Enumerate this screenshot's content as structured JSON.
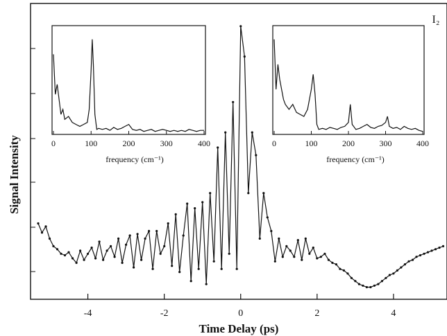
{
  "chart_data": [
    {
      "type": "line",
      "title": "",
      "annotation": "I₂",
      "xlabel": "Time Delay (ps)",
      "ylabel": "Signal Intensity",
      "xlim": [
        -5.5,
        5.4
      ],
      "xticks": [
        -4,
        -2,
        0,
        2,
        4
      ],
      "xtick_labels": [
        "-4",
        "-2",
        "0",
        "2",
        "4"
      ],
      "y_tick_labels_shown": false,
      "grid": false,
      "series": [
        {
          "x": [
            -5.3,
            -5.2,
            -5.1,
            -5.0,
            -4.9,
            -4.8,
            -4.7,
            -4.6,
            -4.5,
            -4.4,
            -4.3,
            -4.2,
            -4.1,
            -4.0,
            -3.9,
            -3.8,
            -3.7,
            -3.6,
            -3.5,
            -3.4,
            -3.3,
            -3.2,
            -3.1,
            -3.0,
            -2.9,
            -2.8,
            -2.7,
            -2.6,
            -2.5,
            -2.4,
            -2.3,
            -2.2,
            -2.1,
            -2.0,
            -1.9,
            -1.8,
            -1.7,
            -1.6,
            -1.5,
            -1.4,
            -1.3,
            -1.2,
            -1.1,
            -1.0,
            -0.9,
            -0.8,
            -0.7,
            -0.6,
            -0.5,
            -0.4,
            -0.3,
            -0.2,
            -0.1,
            0.0,
            0.1,
            0.2,
            0.3,
            0.4,
            0.5,
            0.6,
            0.7,
            0.8,
            0.9,
            1.0,
            1.1,
            1.2,
            1.3,
            1.4,
            1.5,
            1.6,
            1.7,
            1.8,
            1.9,
            2.0,
            2.1,
            2.2,
            2.3,
            2.4,
            2.5,
            2.6,
            2.7,
            2.8,
            2.9,
            3.0,
            3.1,
            3.2,
            3.3,
            3.4,
            3.5,
            3.6,
            3.7,
            3.8,
            3.9,
            4.0,
            4.1,
            4.2,
            4.3,
            4.4,
            4.5,
            4.6,
            4.7,
            4.8,
            4.9,
            5.0,
            5.1,
            5.2,
            5.3
          ],
          "y": [
            0.6,
            0.54,
            0.58,
            0.5,
            0.45,
            0.43,
            0.4,
            0.39,
            0.41,
            0.37,
            0.34,
            0.42,
            0.36,
            0.4,
            0.44,
            0.37,
            0.48,
            0.36,
            0.42,
            0.45,
            0.38,
            0.5,
            0.34,
            0.46,
            0.52,
            0.31,
            0.53,
            0.36,
            0.5,
            0.55,
            0.3,
            0.55,
            0.4,
            0.45,
            0.6,
            0.32,
            0.66,
            0.28,
            0.52,
            0.73,
            0.22,
            0.7,
            0.3,
            0.74,
            0.2,
            0.8,
            0.35,
            1.1,
            0.3,
            1.2,
            0.4,
            1.4,
            0.3,
            1.9,
            1.7,
            0.8,
            1.2,
            1.05,
            0.5,
            0.8,
            0.64,
            0.55,
            0.35,
            0.5,
            0.38,
            0.45,
            0.42,
            0.38,
            0.49,
            0.36,
            0.5,
            0.4,
            0.44,
            0.37,
            0.38,
            0.4,
            0.36,
            0.34,
            0.33,
            0.3,
            0.29,
            0.27,
            0.24,
            0.22,
            0.2,
            0.19,
            0.18,
            0.18,
            0.19,
            0.2,
            0.22,
            0.24,
            0.26,
            0.27,
            0.29,
            0.31,
            0.33,
            0.35,
            0.36,
            0.38,
            0.39,
            0.4,
            0.41,
            0.42,
            0.43,
            0.44,
            0.45
          ]
        }
      ]
    },
    {
      "type": "line",
      "title": "",
      "xlabel": "frequency (cm⁻¹)",
      "ylabel": "",
      "xlim": [
        0,
        400
      ],
      "xticks": [
        0,
        100,
        200,
        300,
        400
      ],
      "xtick_labels": [
        "0",
        "100",
        "200",
        "300",
        "400"
      ],
      "series": [
        {
          "x": [
            0,
            5,
            10,
            15,
            20,
            25,
            30,
            40,
            50,
            60,
            70,
            80,
            90,
            95,
            100,
            103,
            106,
            110,
            115,
            120,
            130,
            140,
            150,
            160,
            170,
            180,
            190,
            200,
            210,
            220,
            230,
            240,
            250,
            260,
            270,
            280,
            290,
            300,
            310,
            320,
            330,
            340,
            350,
            360,
            370,
            380,
            390,
            400
          ],
          "y": [
            0.8,
            0.4,
            0.5,
            0.35,
            0.2,
            0.25,
            0.15,
            0.18,
            0.12,
            0.1,
            0.08,
            0.1,
            0.12,
            0.25,
            0.65,
            0.95,
            0.7,
            0.2,
            0.05,
            0.06,
            0.05,
            0.06,
            0.04,
            0.07,
            0.05,
            0.06,
            0.08,
            0.1,
            0.05,
            0.04,
            0.05,
            0.03,
            0.04,
            0.05,
            0.03,
            0.04,
            0.05,
            0.04,
            0.03,
            0.04,
            0.03,
            0.04,
            0.03,
            0.05,
            0.04,
            0.03,
            0.04,
            0.04
          ]
        }
      ]
    },
    {
      "type": "line",
      "title": "",
      "xlabel": "frequency (cm⁻¹)",
      "ylabel": "",
      "xlim": [
        0,
        400
      ],
      "xticks": [
        0,
        100,
        200,
        300,
        400
      ],
      "xtick_labels": [
        "0",
        "100",
        "200",
        "300",
        "400"
      ],
      "series": [
        {
          "x": [
            0,
            5,
            10,
            15,
            20,
            25,
            30,
            40,
            50,
            60,
            70,
            80,
            90,
            100,
            105,
            110,
            115,
            120,
            130,
            140,
            150,
            160,
            170,
            180,
            190,
            200,
            205,
            210,
            220,
            230,
            240,
            250,
            260,
            270,
            280,
            290,
            300,
            305,
            310,
            320,
            330,
            340,
            350,
            360,
            370,
            380,
            390,
            400
          ],
          "y": [
            0.95,
            0.45,
            0.7,
            0.55,
            0.45,
            0.35,
            0.3,
            0.25,
            0.3,
            0.22,
            0.2,
            0.18,
            0.25,
            0.45,
            0.6,
            0.4,
            0.1,
            0.05,
            0.06,
            0.05,
            0.07,
            0.06,
            0.05,
            0.07,
            0.08,
            0.12,
            0.3,
            0.1,
            0.05,
            0.06,
            0.08,
            0.1,
            0.07,
            0.06,
            0.08,
            0.09,
            0.12,
            0.18,
            0.08,
            0.06,
            0.07,
            0.05,
            0.08,
            0.06,
            0.05,
            0.06,
            0.04,
            0.03
          ]
        }
      ]
    }
  ]
}
